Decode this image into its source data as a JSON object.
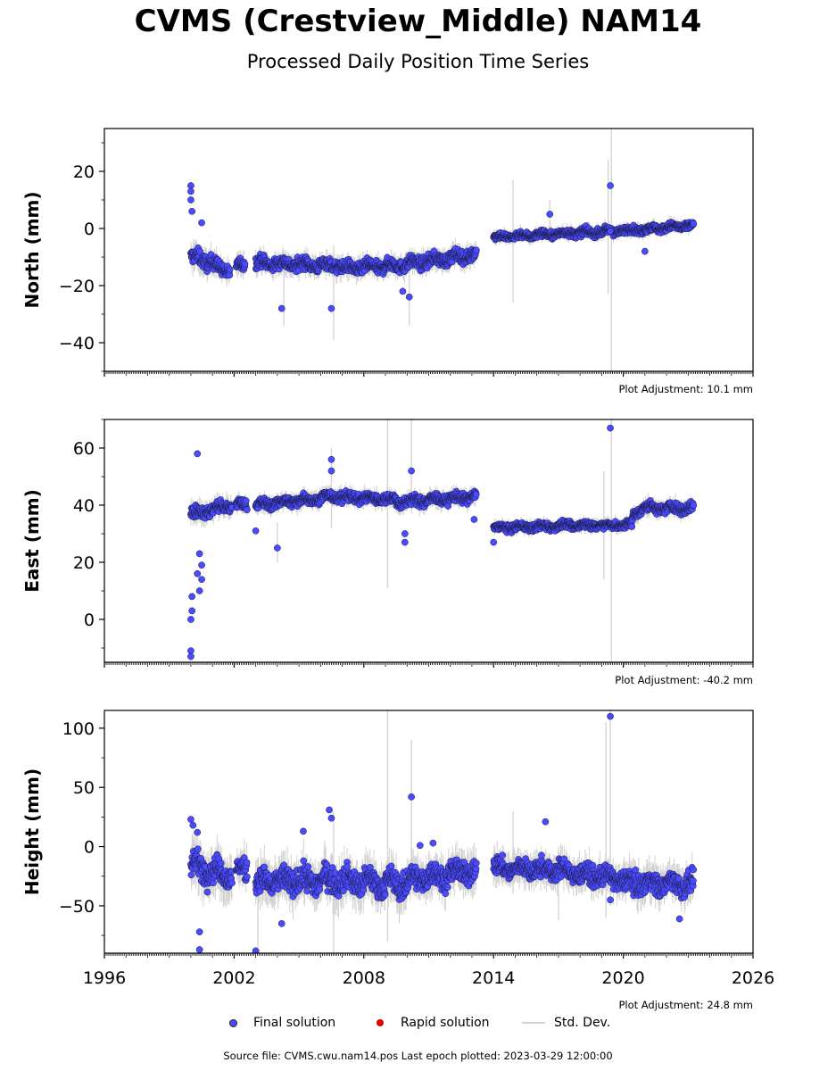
{
  "title": "CVMS (Crestview_Middle) NAM14",
  "subtitle": "Processed Daily Position Time Series",
  "footer": "Source file: CVMS.cwu.nam14.pos  Last epoch plotted: 2023-03-29 12:00:00",
  "legend": {
    "final": "Final solution",
    "rapid": "Rapid solution",
    "std": "Std. Dev."
  },
  "colors": {
    "final": "#4a4aff",
    "rapid": "#dd0000",
    "std": "#d2d2d2"
  },
  "chart_data": {
    "type": "scatter",
    "x_ticks": [
      "1996",
      "2002",
      "2008",
      "2014",
      "2020",
      "2026"
    ],
    "xlim": [
      1996,
      2026
    ],
    "panels": [
      {
        "id": "north",
        "ylabel": "North (mm)",
        "ylim": [
          -50,
          35
        ],
        "yticks": [
          -40,
          -20,
          0,
          20
        ],
        "adjustment": "Plot Adjustment: 10.1 mm",
        "segments": [
          {
            "x": [
              2000.0,
              2001.2
            ],
            "y": [
              -10,
              -12
            ],
            "noise": 3
          },
          {
            "x": [
              2001.2,
              2001.8
            ],
            "y": [
              -14,
              -15
            ],
            "noise": 2.5
          },
          {
            "x": [
              2002.1,
              2002.5
            ],
            "y": [
              -13,
              -13
            ],
            "noise": 2.5
          },
          {
            "x": [
              2003.0,
              2007.0
            ],
            "y": [
              -12,
              -13
            ],
            "noise": 2.5
          },
          {
            "x": [
              2007.0,
              2009.5
            ],
            "y": [
              -14,
              -13
            ],
            "noise": 2.5
          },
          {
            "x": [
              2009.5,
              2013.2
            ],
            "y": [
              -13,
              -9
            ],
            "noise": 2.5
          },
          {
            "x": [
              2014.0,
              2016.5
            ],
            "y": [
              -3,
              -2
            ],
            "noise": 1.5
          },
          {
            "x": [
              2016.5,
              2019.5
            ],
            "y": [
              -2,
              -1
            ],
            "noise": 1.5
          },
          {
            "x": [
              2019.5,
              2023.25
            ],
            "y": [
              -1,
              1
            ],
            "noise": 1.5
          }
        ],
        "outliers": [
          [
            2000.0,
            15
          ],
          [
            2000.0,
            13
          ],
          [
            2000.0,
            10
          ],
          [
            2000.05,
            6
          ],
          [
            2000.5,
            2
          ],
          [
            2004.2,
            -28
          ],
          [
            2006.5,
            -28
          ],
          [
            2009.8,
            -22
          ],
          [
            2010.1,
            -24
          ],
          [
            2016.6,
            5
          ],
          [
            2019.4,
            15
          ],
          [
            2019.4,
            -1
          ],
          [
            2021.0,
            -8
          ]
        ],
        "std_bars": [
          [
            2014.9,
            -26,
            17
          ],
          [
            2019.3,
            -23,
            24
          ],
          [
            2019.45,
            -50,
            35
          ],
          [
            2006.6,
            -39,
            -6
          ],
          [
            2010.1,
            -34,
            -10
          ],
          [
            2004.3,
            -34,
            -14
          ],
          [
            2016.6,
            -1,
            10
          ]
        ]
      },
      {
        "id": "east",
        "ylabel": "East (mm)",
        "ylim": [
          -15,
          70
        ],
        "yticks": [
          0,
          20,
          40,
          60
        ],
        "adjustment": "Plot Adjustment: -40.2 mm",
        "segments": [
          {
            "x": [
              2000.0,
              2001.9
            ],
            "y": [
              37,
              40
            ],
            "noise": 2.5
          },
          {
            "x": [
              2002.1,
              2002.6
            ],
            "y": [
              40,
              40
            ],
            "noise": 2
          },
          {
            "x": [
              2003.0,
              2006.5
            ],
            "y": [
              40,
              43
            ],
            "noise": 2
          },
          {
            "x": [
              2006.5,
              2009.5
            ],
            "y": [
              43,
              42
            ],
            "noise": 2
          },
          {
            "x": [
              2009.5,
              2013.2
            ],
            "y": [
              41,
              43
            ],
            "noise": 2
          },
          {
            "x": [
              2014.0,
              2018.0
            ],
            "y": [
              32,
              33
            ],
            "noise": 1.5
          },
          {
            "x": [
              2018.0,
              2020.4
            ],
            "y": [
              33,
              33
            ],
            "noise": 1.5
          },
          {
            "x": [
              2020.4,
              2021.0
            ],
            "y": [
              36,
              40
            ],
            "noise": 2
          },
          {
            "x": [
              2021.0,
              2023.25
            ],
            "y": [
              39,
              39
            ],
            "noise": 2
          }
        ],
        "outliers": [
          [
            2000.0,
            -11
          ],
          [
            2000.0,
            -13
          ],
          [
            2000.0,
            0
          ],
          [
            2000.05,
            3
          ],
          [
            2000.05,
            8
          ],
          [
            2000.3,
            16
          ],
          [
            2000.4,
            23
          ],
          [
            2000.5,
            19
          ],
          [
            2000.5,
            14
          ],
          [
            2000.4,
            10
          ],
          [
            2000.3,
            58
          ],
          [
            2003.0,
            31
          ],
          [
            2004.0,
            25
          ],
          [
            2006.5,
            56
          ],
          [
            2006.5,
            52
          ],
          [
            2009.9,
            27
          ],
          [
            2009.9,
            30
          ],
          [
            2010.2,
            52
          ],
          [
            2013.1,
            35
          ],
          [
            2014.0,
            27
          ],
          [
            2019.4,
            67
          ]
        ],
        "std_bars": [
          [
            2009.1,
            11,
            70
          ],
          [
            2010.2,
            38,
            70
          ],
          [
            2019.1,
            14,
            52
          ],
          [
            2019.45,
            -15,
            70
          ],
          [
            2006.5,
            32,
            60
          ],
          [
            2004.0,
            20,
            34
          ]
        ]
      },
      {
        "id": "height",
        "ylabel": "Height (mm)",
        "ylim": [
          -90,
          115
        ],
        "yticks": [
          -50,
          0,
          50,
          100
        ],
        "adjustment": "Plot Adjustment: 24.8 mm",
        "segments": [
          {
            "x": [
              2000.0,
              2001.9
            ],
            "y": [
              -15,
              -25
            ],
            "noise": 12
          },
          {
            "x": [
              2002.1,
              2002.6
            ],
            "y": [
              -20,
              -20
            ],
            "noise": 10
          },
          {
            "x": [
              2003.0,
              2006.5
            ],
            "y": [
              -30,
              -28
            ],
            "noise": 12
          },
          {
            "x": [
              2006.5,
              2010.0
            ],
            "y": [
              -28,
              -32
            ],
            "noise": 12
          },
          {
            "x": [
              2010.0,
              2013.2
            ],
            "y": [
              -28,
              -20
            ],
            "noise": 11
          },
          {
            "x": [
              2014.0,
              2017.5
            ],
            "y": [
              -18,
              -20
            ],
            "noise": 9
          },
          {
            "x": [
              2017.5,
              2020.0
            ],
            "y": [
              -22,
              -28
            ],
            "noise": 9
          },
          {
            "x": [
              2020.0,
              2023.25
            ],
            "y": [
              -30,
              -32
            ],
            "noise": 10
          }
        ],
        "outliers": [
          [
            2000.0,
            23
          ],
          [
            2000.1,
            18
          ],
          [
            2000.3,
            12
          ],
          [
            2000.4,
            -72
          ],
          [
            2000.4,
            -87
          ],
          [
            2003.0,
            -88
          ],
          [
            2004.2,
            -65
          ],
          [
            2005.2,
            13
          ],
          [
            2006.4,
            31
          ],
          [
            2006.5,
            24
          ],
          [
            2010.2,
            42
          ],
          [
            2010.6,
            1
          ],
          [
            2011.2,
            3
          ],
          [
            2016.4,
            21
          ],
          [
            2019.4,
            110
          ],
          [
            2019.4,
            -45
          ],
          [
            2022.6,
            -61
          ]
        ],
        "std_bars": [
          [
            2009.1,
            -80,
            115
          ],
          [
            2010.2,
            -30,
            90
          ],
          [
            2006.6,
            -90,
            30
          ],
          [
            2019.2,
            -60,
            105
          ],
          [
            2019.4,
            -50,
            115
          ],
          [
            2014.9,
            -40,
            30
          ],
          [
            2017.0,
            -62,
            0
          ],
          [
            2003.1,
            -85,
            -40
          ]
        ]
      }
    ]
  }
}
